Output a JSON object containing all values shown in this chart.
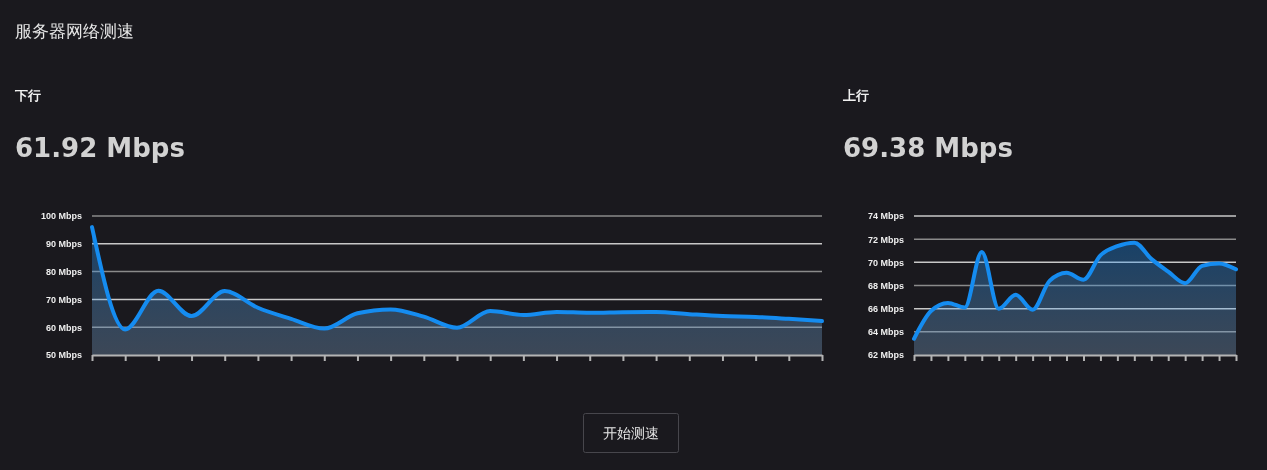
{
  "chart_data": [
    {
      "type": "other",
      "title": "服务器网络测速",
      "annotations": [
        "开始测速"
      ]
    },
    {
      "type": "area",
      "title": "下行",
      "subtitle": "61.92 Mbps",
      "categories": [
        null,
        null,
        null,
        null,
        null,
        null,
        null,
        null,
        null,
        null,
        null,
        null,
        null,
        null,
        null,
        null,
        null,
        null,
        null,
        null,
        null,
        null,
        null
      ],
      "series": [
        {
          "color": "#158cf0",
          "values": [
            96,
            59.2,
            73.1,
            64,
            73,
            67,
            63,
            59.5,
            65,
            66.4,
            63.8,
            59.8,
            65.8,
            64.4,
            65.5,
            65.2,
            65.4,
            65.5,
            64.7,
            64,
            63.7,
            63,
            62.2
          ]
        }
      ],
      "ylim": [
        50,
        100
      ],
      "yticks": [
        {
          "value": 50,
          "label": "50 Mbps"
        },
        {
          "value": 60,
          "label": "60 Mbps"
        },
        {
          "value": 70,
          "label": "70 Mbps"
        },
        {
          "value": 80,
          "label": "80 Mbps"
        },
        {
          "value": 90,
          "label": "90 Mbps"
        },
        {
          "value": 100,
          "label": "100 Mbps"
        }
      ],
      "grid": "y"
    },
    {
      "type": "area",
      "title": "上行",
      "subtitle": "69.38 Mbps",
      "categories": [
        null,
        null,
        null,
        null,
        null,
        null,
        null,
        null,
        null,
        null,
        null,
        null,
        null,
        null,
        null,
        null,
        null,
        null,
        null,
        null
      ],
      "series": [
        {
          "color": "#158cf0",
          "values": [
            63.4,
            65.8,
            66.5,
            66.1,
            70.9,
            66,
            67.2,
            65.9,
            68.4,
            69.1,
            68.5,
            70.6,
            71.4,
            71.7,
            70.3,
            69.2,
            68.2,
            69.7,
            69.9,
            69.4
          ]
        }
      ],
      "ylim": [
        62,
        74
      ],
      "yticks": [
        {
          "value": 62,
          "label": "62 Mbps"
        },
        {
          "value": 64,
          "label": "64 Mbps"
        },
        {
          "value": 66,
          "label": "66 Mbps"
        },
        {
          "value": 68,
          "label": "68 Mbps"
        },
        {
          "value": 70,
          "label": "70 Mbps"
        },
        {
          "value": 72,
          "label": "72 Mbps"
        },
        {
          "value": 74,
          "label": "74 Mbps"
        }
      ],
      "grid": "y"
    }
  ]
}
